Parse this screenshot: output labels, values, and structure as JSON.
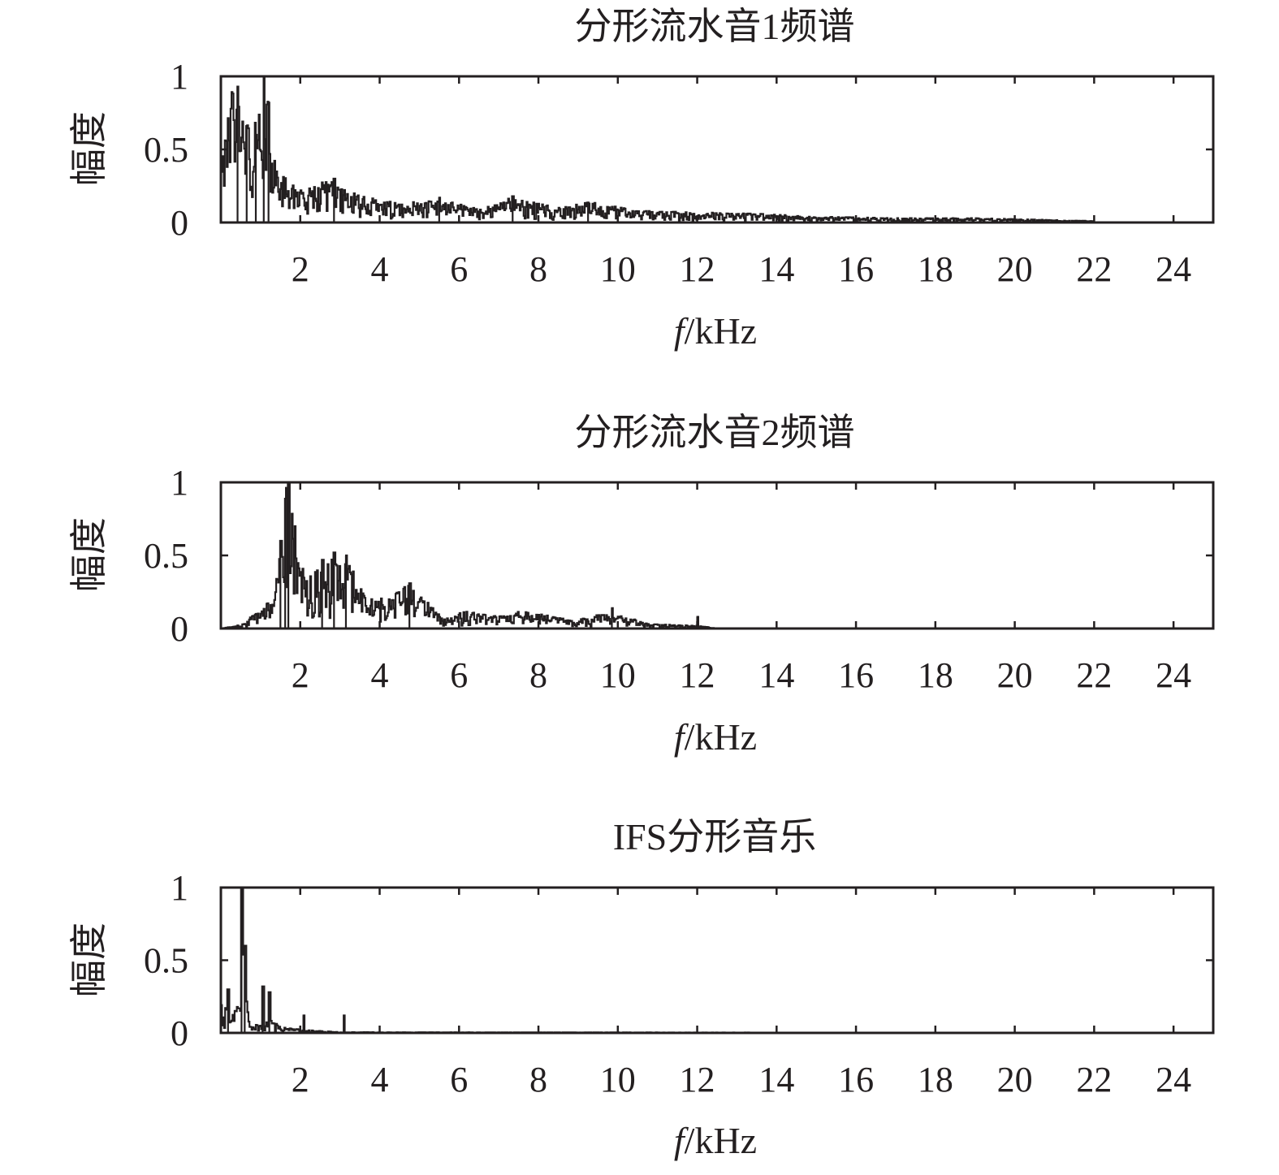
{
  "figure": {
    "background": "#ffffff",
    "line_color": "#231f20"
  },
  "chart_data": [
    {
      "type": "line",
      "title": "分形流水音1频谱",
      "xlabel_italic": "f",
      "xlabel_unit": "/kHz",
      "ylabel": "幅度",
      "xlim": [
        0,
        25
      ],
      "ylim": [
        0,
        1
      ],
      "xticks": [
        2,
        4,
        6,
        8,
        10,
        12,
        14,
        16,
        18,
        20,
        22,
        24
      ],
      "yticks": [
        0,
        0.5,
        1
      ],
      "ytick_labels": [
        "0",
        "0.5",
        "1"
      ],
      "grid": false,
      "data_end_khz": 22,
      "envelope": [
        [
          0,
          0.4
        ],
        [
          0.3,
          0.95
        ],
        [
          0.6,
          0.65
        ],
        [
          1.0,
          0.75
        ],
        [
          1.1,
          1.0
        ],
        [
          1.4,
          0.35
        ],
        [
          2.0,
          0.22
        ],
        [
          2.8,
          0.3
        ],
        [
          3.5,
          0.18
        ],
        [
          4.5,
          0.13
        ],
        [
          5.5,
          0.16
        ],
        [
          6.5,
          0.09
        ],
        [
          7.3,
          0.17
        ],
        [
          8.5,
          0.1
        ],
        [
          9.3,
          0.14
        ],
        [
          10.5,
          0.08
        ],
        [
          12.0,
          0.07
        ],
        [
          13.5,
          0.06
        ],
        [
          15.0,
          0.04
        ],
        [
          17.0,
          0.03
        ],
        [
          19.0,
          0.03
        ],
        [
          22.0,
          0.01
        ]
      ],
      "peaks": [
        [
          0.42,
          0.93
        ],
        [
          1.08,
          1.0
        ],
        [
          1.2,
          0.82
        ],
        [
          0.88,
          0.6
        ],
        [
          0.65,
          0.66
        ],
        [
          2.85,
          0.3
        ],
        [
          5.5,
          0.17
        ],
        [
          7.35,
          0.18
        ],
        [
          9.25,
          0.13
        ]
      ]
    },
    {
      "type": "line",
      "title": "分形流水音2频谱",
      "xlabel_italic": "f",
      "xlabel_unit": "/kHz",
      "ylabel": "幅度",
      "xlim": [
        0,
        25
      ],
      "ylim": [
        0,
        1
      ],
      "xticks": [
        2,
        4,
        6,
        8,
        10,
        12,
        14,
        16,
        18,
        20,
        22,
        24
      ],
      "yticks": [
        0,
        0.5,
        1
      ],
      "ytick_labels": [
        "0",
        "0.5",
        "1"
      ],
      "grid": false,
      "data_end_khz": 22,
      "envelope": [
        [
          0,
          0.0
        ],
        [
          0.4,
          0.02
        ],
        [
          1.0,
          0.12
        ],
        [
          1.3,
          0.25
        ],
        [
          1.6,
          0.95
        ],
        [
          1.75,
          1.0
        ],
        [
          1.95,
          0.45
        ],
        [
          2.2,
          0.35
        ],
        [
          2.8,
          0.48
        ],
        [
          3.3,
          0.42
        ],
        [
          3.6,
          0.22
        ],
        [
          4.2,
          0.2
        ],
        [
          4.7,
          0.3
        ],
        [
          5.2,
          0.18
        ],
        [
          5.6,
          0.06
        ],
        [
          6.2,
          0.13
        ],
        [
          6.8,
          0.08
        ],
        [
          7.5,
          0.12
        ],
        [
          8.3,
          0.09
        ],
        [
          8.9,
          0.05
        ],
        [
          9.5,
          0.1
        ],
        [
          10.2,
          0.08
        ],
        [
          10.8,
          0.03
        ],
        [
          12.0,
          0.02
        ],
        [
          12.5,
          0.0
        ],
        [
          22.0,
          0.0
        ]
      ],
      "peaks": [
        [
          1.62,
          0.88
        ],
        [
          1.7,
          1.0
        ],
        [
          1.5,
          0.6
        ],
        [
          2.85,
          0.52
        ],
        [
          3.15,
          0.5
        ],
        [
          2.55,
          0.47
        ],
        [
          4.75,
          0.31
        ],
        [
          9.85,
          0.14
        ],
        [
          12.0,
          0.08
        ]
      ]
    },
    {
      "type": "line",
      "title": "IFS分形音乐",
      "xlabel_italic": "f",
      "xlabel_unit": "/kHz",
      "ylabel": "幅度",
      "xlim": [
        0,
        25
      ],
      "ylim": [
        0,
        1
      ],
      "xticks": [
        2,
        4,
        6,
        8,
        10,
        12,
        14,
        16,
        18,
        20,
        22,
        24
      ],
      "yticks": [
        0,
        0.5,
        1
      ],
      "ytick_labels": [
        "0",
        "0.5",
        "1"
      ],
      "grid": false,
      "data_end_khz": 24,
      "envelope": [
        [
          0,
          0.2
        ],
        [
          0.2,
          0.15
        ],
        [
          0.45,
          0.2
        ],
        [
          0.5,
          0.3
        ],
        [
          0.55,
          1.0
        ],
        [
          0.62,
          0.6
        ],
        [
          0.7,
          0.08
        ],
        [
          1.0,
          0.06
        ],
        [
          1.2,
          0.1
        ],
        [
          1.5,
          0.04
        ],
        [
          2.1,
          0.02
        ],
        [
          3.0,
          0.005
        ],
        [
          24.0,
          0.0
        ]
      ],
      "peaks": [
        [
          0.52,
          1.0
        ],
        [
          0.6,
          0.6
        ],
        [
          0.18,
          0.3
        ],
        [
          1.05,
          0.32
        ],
        [
          1.22,
          0.28
        ],
        [
          2.08,
          0.12
        ],
        [
          3.1,
          0.12
        ]
      ]
    }
  ]
}
